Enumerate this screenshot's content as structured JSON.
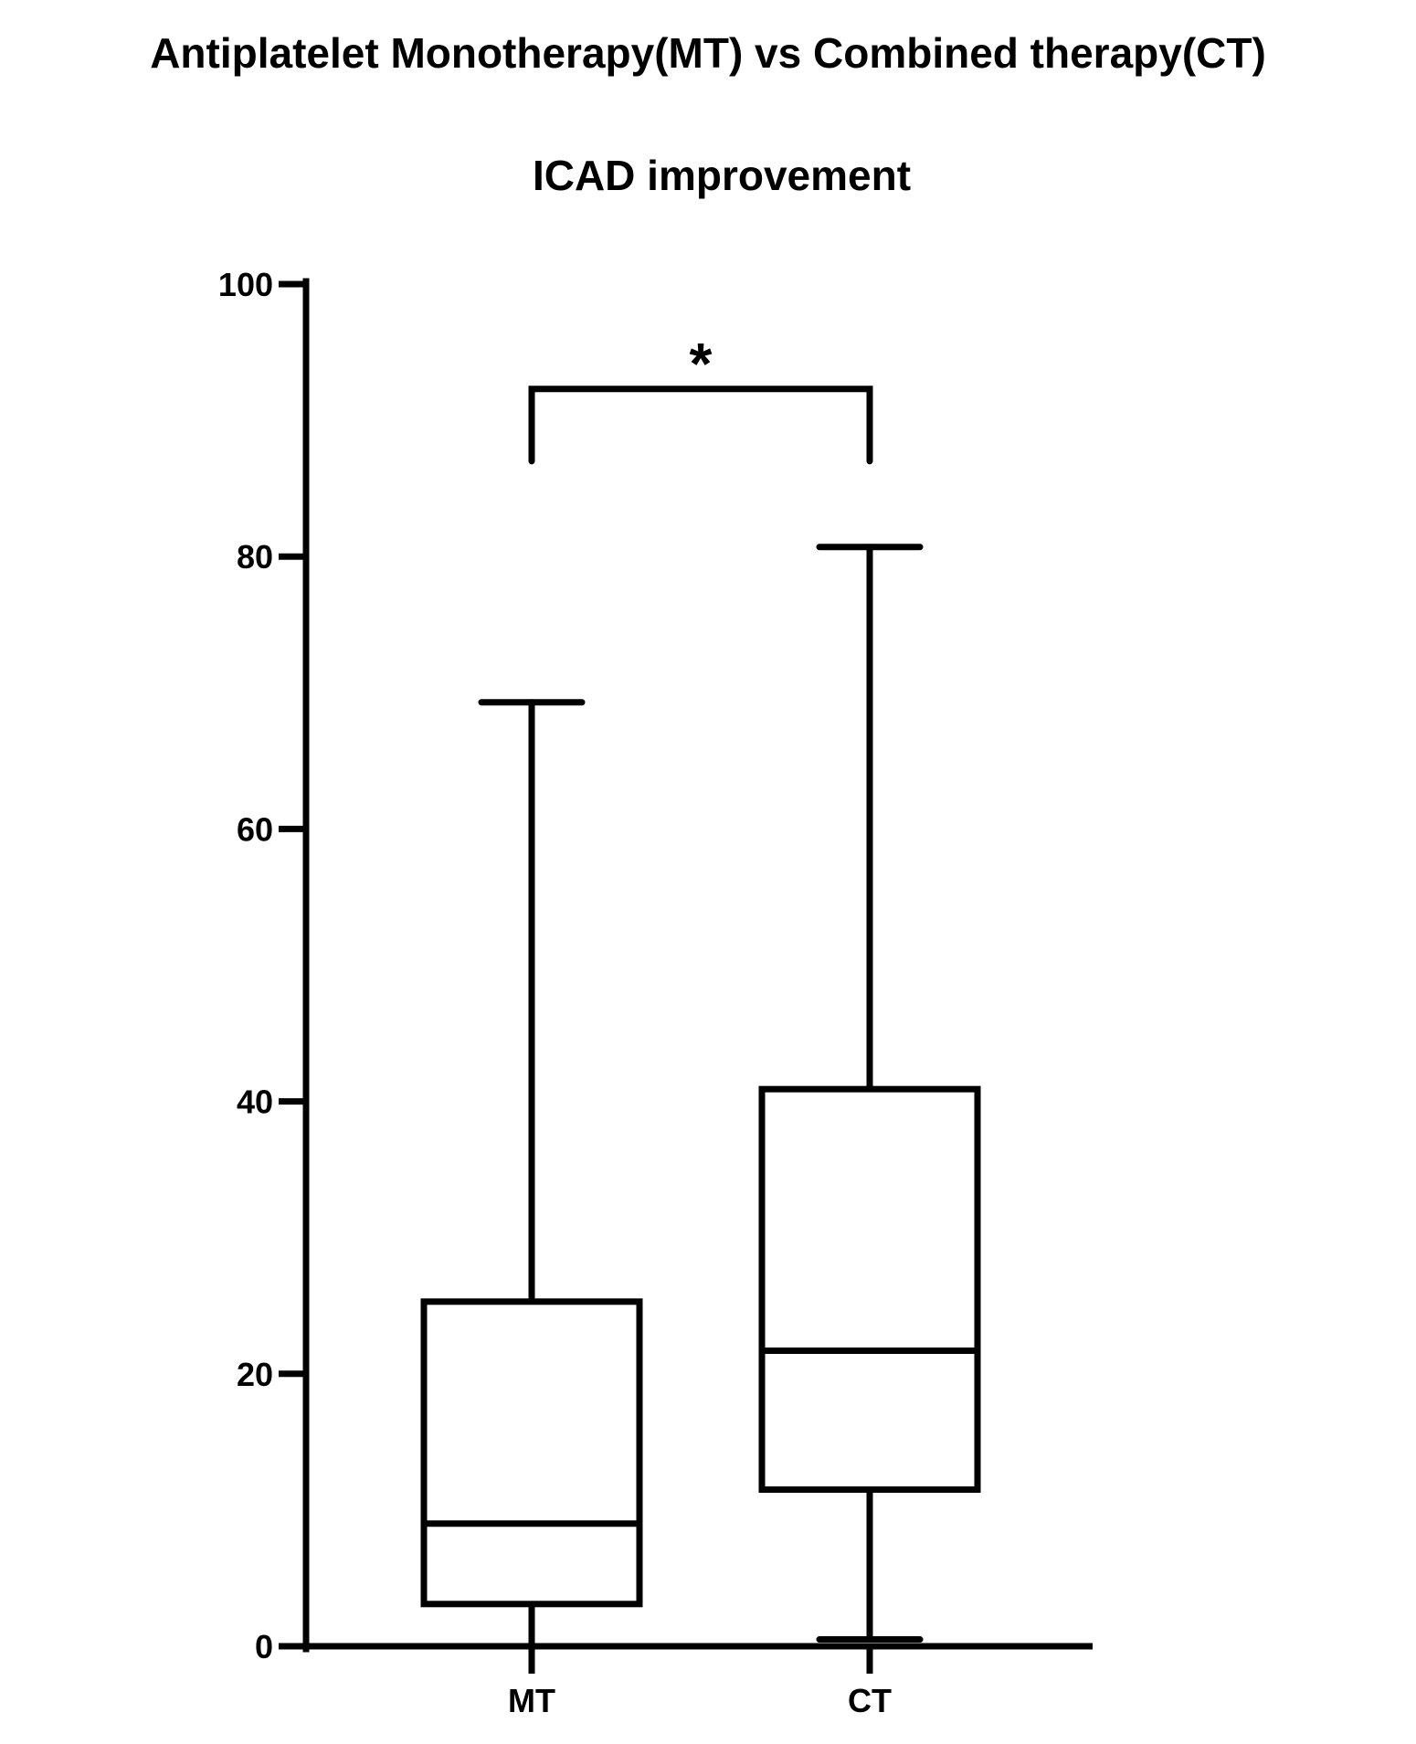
{
  "chart_data": {
    "type": "box",
    "title": "Antiplatelet Monotherapy(MT) vs Combined therapy(CT)",
    "subtitle": "ICAD improvement",
    "xlabel": "",
    "ylabel": "",
    "ylim": [
      0,
      100
    ],
    "yticks": [
      "0",
      "20",
      "40",
      "60",
      "80",
      "100"
    ],
    "yticks_values": [
      0,
      20,
      40,
      60,
      80,
      100
    ],
    "grid": false,
    "categories": [
      "MT",
      "CT"
    ],
    "boxes": [
      {
        "name": "MT",
        "min": 0,
        "q1": 3.1,
        "median": 9.0,
        "q3": 25.3,
        "max": 69.3
      },
      {
        "name": "CT",
        "min": 0.5,
        "q1": 11.5,
        "median": 21.7,
        "q3": 40.9,
        "max": 80.7
      }
    ],
    "significance": {
      "between": [
        "MT",
        "CT"
      ],
      "label": "*",
      "bracket_y": 92.3,
      "leg_bottom": 87.0
    },
    "color": "#000000"
  }
}
